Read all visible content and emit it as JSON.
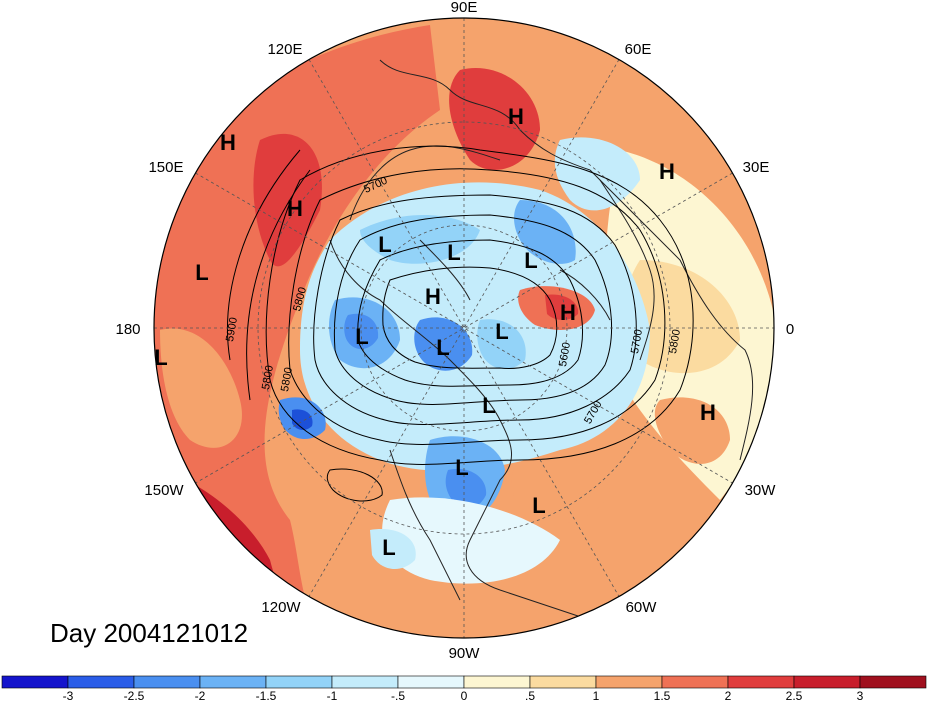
{
  "date_label": "Day 2004121012",
  "longitude_labels": [
    "90E",
    "60E",
    "30E",
    "0",
    "30W",
    "60W",
    "90W",
    "120W",
    "150W",
    "180",
    "150E",
    "120E"
  ],
  "pressure_systems": [
    {
      "type": "H",
      "label": "H"
    },
    {
      "type": "H",
      "label": "H"
    },
    {
      "type": "H",
      "label": "H"
    },
    {
      "type": "H",
      "label": "H"
    },
    {
      "type": "H",
      "label": "H"
    },
    {
      "type": "H",
      "label": "H"
    },
    {
      "type": "H",
      "label": "H"
    },
    {
      "type": "L",
      "label": "L"
    },
    {
      "type": "L",
      "label": "L"
    },
    {
      "type": "L",
      "label": "L"
    },
    {
      "type": "L",
      "label": "L"
    },
    {
      "type": "L",
      "label": "L"
    },
    {
      "type": "L",
      "label": "L"
    },
    {
      "type": "L",
      "label": "L"
    },
    {
      "type": "L",
      "label": "L"
    },
    {
      "type": "L",
      "label": "L"
    },
    {
      "type": "L",
      "label": "L"
    },
    {
      "type": "L",
      "label": "L"
    }
  ],
  "contour_labels": [
    "5700",
    "5800",
    "5900",
    "5800",
    "5600",
    "5700",
    "5800",
    "5700",
    "5800"
  ],
  "colorbar": {
    "ticks": [
      "-3",
      "-2.5",
      "-2",
      "-1.5",
      "-1",
      "-.5",
      "0",
      ".5",
      "1",
      "1.5",
      "2",
      "2.5",
      "3"
    ],
    "colors": [
      "#1414cc",
      "#2a5de8",
      "#4a8ff0",
      "#6bb2f5",
      "#93d3f8",
      "#c4ecfb",
      "#e6f8fd",
      "#fdf6d2",
      "#fbdba0",
      "#f5a36c",
      "#ef7155",
      "#e03d3d",
      "#c81e2c",
      "#a0101e"
    ]
  },
  "colors": {
    "warm_high": "#ef7155",
    "warm_mid": "#f5a36c",
    "cool": "#6bb2f5",
    "deep_cool": "#1c50d8"
  }
}
